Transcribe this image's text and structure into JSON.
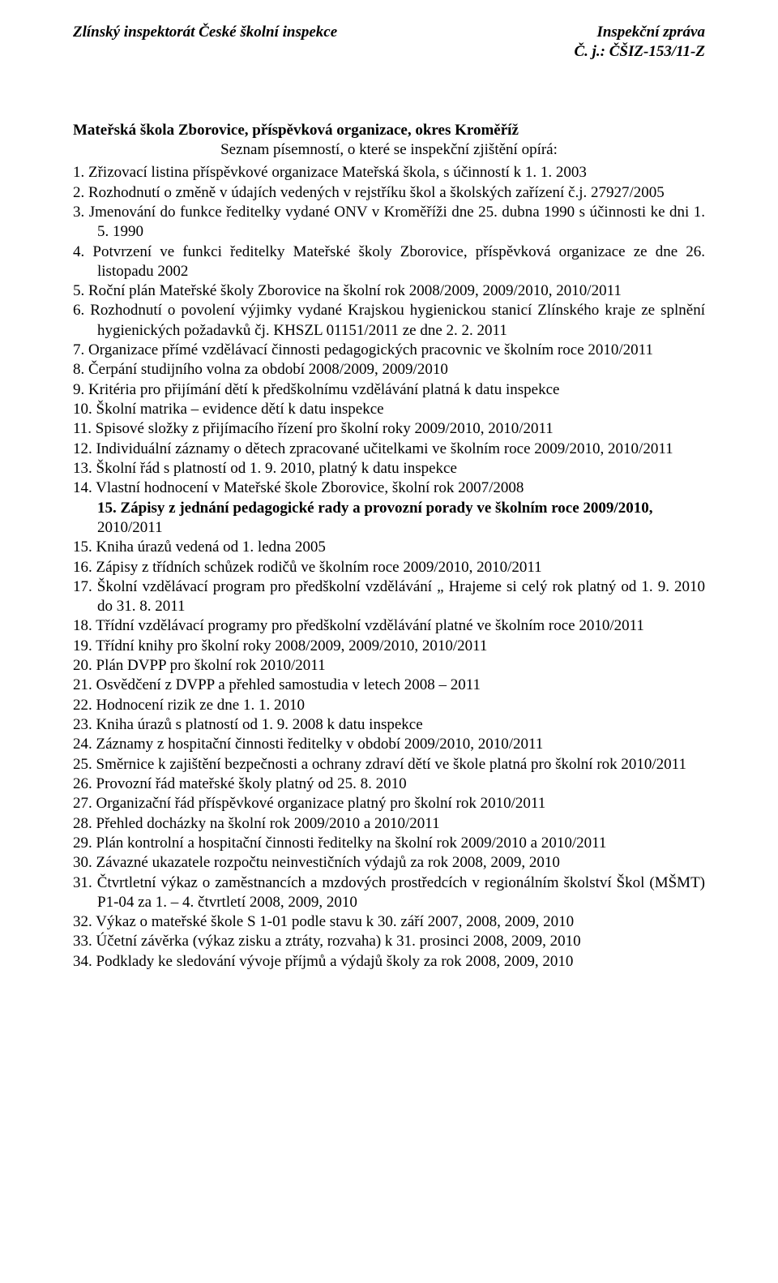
{
  "header": {
    "left": "Zlínský inspektorát České školní inspekce",
    "right1": "Inspekční zpráva",
    "right2": "Č. j.: ČŠIZ-153/11-Z"
  },
  "title": "Mateřská škola Zborovice, příspěvková organizace, okres Kroměříž",
  "subtitle": "Seznam písemností, o které se inspekční zjištění opírá:",
  "items": [
    {
      "text": "Zřizovací listina příspěvkové organizace Mateřská škola, s účinností k 1. 1. 2003"
    },
    {
      "text": "Rozhodnutí o změně v údajích vedených v rejstříku škol a školských zařízení č.j. 27927/2005"
    },
    {
      "text": "Jmenování do funkce ředitelky vydané ONV v Kroměříži dne 25. dubna 1990 s účinnosti ke dni 1. 5. 1990"
    },
    {
      "text": "Potvrzení ve funkci ředitelky Mateřské školy Zborovice, příspěvková organizace ze dne 26. listopadu 2002"
    },
    {
      "text": "Roční plán Mateřské školy Zborovice na školní rok 2008/2009, 2009/2010, 2010/2011"
    },
    {
      "text": "Rozhodnutí o povolení výjimky vydané Krajskou hygienickou stanicí Zlínského kraje ze splnění hygienických požadavků čj. KHSZL 01151/2011 ze dne 2. 2. 2011"
    },
    {
      "text": "Organizace přímé vzdělávací činnosti pedagogických pracovnic ve školním roce 2010/2011"
    },
    {
      "text": "Čerpání studijního volna za období 2008/2009, 2009/2010"
    },
    {
      "text": "Kritéria pro přijímání dětí k předškolnímu vzdělávání platná k datu inspekce"
    },
    {
      "text": "Školní matrika – evidence dětí k datu inspekce"
    },
    {
      "text": "Spisové složky z přijímacího řízení pro školní roky 2009/2010, 2010/2011"
    },
    {
      "text": "Individuální záznamy o dětech zpracované učitelkami ve školním roce 2009/2010, 2010/2011"
    },
    {
      "text": " Školní řád s platností od 1. 9. 2010, platný k datu inspekce"
    },
    {
      "text": "Vlastní hodnocení v Mateřské škole Zborovice, školní rok 2007/2008",
      "nested_bold": "15. Zápisy z jednání pedagogické rady a provozní porady ve školním roce 2009/2010,",
      "cont": "2010/2011",
      "skip": true
    },
    {
      "blank": true
    },
    {
      "text": " Kniha úrazů vedená od 1. ledna 2005"
    },
    {
      "text": "Zápisy z třídních schůzek rodičů ve školním roce 2009/2010, 2010/2011"
    },
    {
      "text": "Školní vzdělávací program pro předškolní vzdělávání „ Hrajeme si celý rok platný od 1. 9. 2010 do 31. 8. 2011"
    },
    {
      "text": "Třídní vzdělávací programy pro předškolní vzdělávání platné ve školním roce 2010/2011"
    },
    {
      "text": "Třídní knihy pro školní roky 2008/2009, 2009/2010, 2010/2011"
    },
    {
      "text": "Plán DVPP pro školní rok 2010/2011"
    },
    {
      "text": "Osvědčení z DVPP a přehled samostudia v letech 2008 – 2011"
    },
    {
      "text": "Hodnocení rizik ze dne 1. 1. 2010"
    },
    {
      "text": "Kniha úrazů s platností od 1. 9. 2008 k datu inspekce"
    },
    {
      "text": "Záznamy z hospitační činnosti ředitelky v období 2009/2010, 2010/2011"
    },
    {
      "text": "Směrnice k zajištění bezpečnosti a ochrany zdraví dětí ve škole platná pro školní rok 2010/2011"
    },
    {
      "text": "Provozní řád mateřské školy platný od 25. 8. 2010"
    },
    {
      "text": "Organizační řád příspěvkové organizace platný pro školní rok 2010/2011"
    },
    {
      "text": "Přehled docházky na školní rok 2009/2010 a 2010/2011"
    },
    {
      "text": "Plán kontrolní a hospitační činnosti ředitelky na školní rok 2009/2010 a 2010/2011"
    },
    {
      "text": "Závazné ukazatele rozpočtu neinvestičních výdajů za rok 2008, 2009, 2010"
    },
    {
      "text": "Čtvrtletní výkaz o zaměstnancích a mzdových prostředcích v regionálním školství Škol (MŠMT) P1-04 za 1. – 4. čtvrtletí 2008, 2009, 2010"
    },
    {
      "text": "Výkaz o mateřské škole S 1-01 podle stavu k 30. září 2007, 2008, 2009, 2010"
    },
    {
      "text": "Účetní závěrka (výkaz zisku a ztráty, rozvaha) k 31. prosinci 2008, 2009, 2010"
    },
    {
      "text": "Podklady ke sledování vývoje příjmů a výdajů školy za rok 2008, 2009, 2010"
    }
  ],
  "colors": {
    "text": "#000000",
    "background": "#ffffff"
  },
  "typography": {
    "font_family": "Times New Roman",
    "body_fontsize_pt": 14,
    "header_bold_italic": true
  }
}
